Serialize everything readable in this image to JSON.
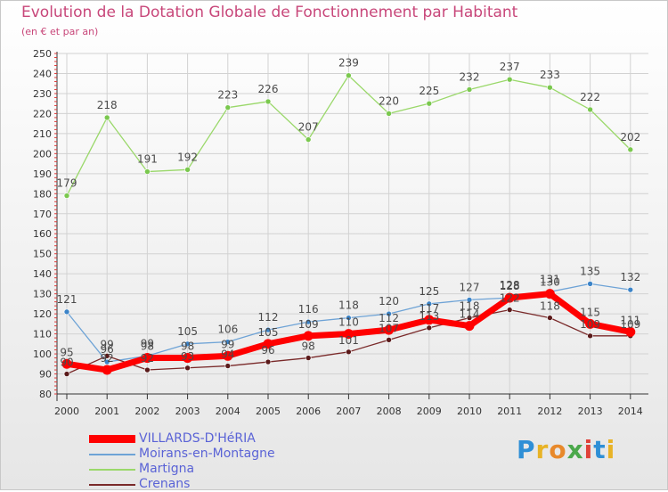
{
  "header": {
    "title": "Evolution de la Dotation Globale de Fonctionnement par Habitant",
    "subtitle": "(en € et par an)"
  },
  "brand": {
    "letters": [
      "P",
      "r",
      "o",
      "x",
      "i",
      "t",
      "i"
    ],
    "colors": [
      "#2f8fd6",
      "#e8b326",
      "#e8892b",
      "#4aa84a",
      "#e0423a",
      "#2f8fd6",
      "#e8b326"
    ]
  },
  "colors": {
    "VILLARDS-D'HéRIA": "#ff0000",
    "Moirans-en-Montagne": "#6ea3d6",
    "Martigna": "#9ad86a",
    "Crenans": "#7a2a2a"
  },
  "chart_data": {
    "type": "line",
    "title": "Evolution de la Dotation Globale de Fonctionnement par Habitant",
    "subtitle": "(en € et par an)",
    "xlabel": "",
    "ylabel": "",
    "ylim": [
      80,
      250
    ],
    "yticks": [
      80,
      90,
      100,
      110,
      120,
      130,
      140,
      150,
      160,
      170,
      180,
      190,
      200,
      210,
      220,
      230,
      240,
      250
    ],
    "grid": true,
    "legend_position": "bottom-left",
    "x": [
      "2000",
      "2001",
      "2002",
      "2003",
      "2004",
      "2005",
      "2006",
      "2007",
      "2008",
      "2009",
      "2010",
      "2011",
      "2012",
      "2013",
      "2014"
    ],
    "series": [
      {
        "name": "VILLARDS-D'HéRIA",
        "values": [
          95,
          92,
          98,
          98,
          99,
          105,
          109,
          110,
          112,
          117,
          114,
          128,
          130,
          115,
          111
        ],
        "labels": [
          "95",
          "92",
          "98",
          "98",
          "99",
          "105",
          "109",
          "110",
          "112",
          "117",
          "114",
          "128",
          "130",
          "115",
          "111"
        ]
      },
      {
        "name": "Moirans-en-Montagne",
        "values": [
          121,
          96,
          99,
          105,
          106,
          112,
          116,
          118,
          120,
          125,
          127,
          128,
          131,
          135,
          132
        ],
        "labels": [
          "121",
          "96",
          "99",
          "105",
          "106",
          "112",
          "116",
          "118",
          "120",
          "125",
          "127",
          "128",
          "131",
          "135",
          "132"
        ]
      },
      {
        "name": "Martigna",
        "values": [
          179,
          218,
          191,
          192,
          223,
          226,
          207,
          239,
          220,
          225,
          232,
          237,
          233,
          222,
          202
        ],
        "labels": [
          "179",
          "218",
          "191",
          "192",
          "223",
          "226",
          "207",
          "239",
          "220",
          "225",
          "232",
          "237",
          "233",
          "222",
          "202"
        ]
      },
      {
        "name": "Crenans",
        "values": [
          90,
          99,
          92,
          93,
          94,
          96,
          98,
          101,
          107,
          113,
          118,
          122,
          118,
          109,
          109
        ],
        "labels": [
          "90",
          "99",
          "92",
          "93",
          "94",
          "96",
          "98",
          "101",
          "107",
          "113",
          "118",
          "122",
          "118",
          "109",
          "109"
        ]
      }
    ]
  }
}
